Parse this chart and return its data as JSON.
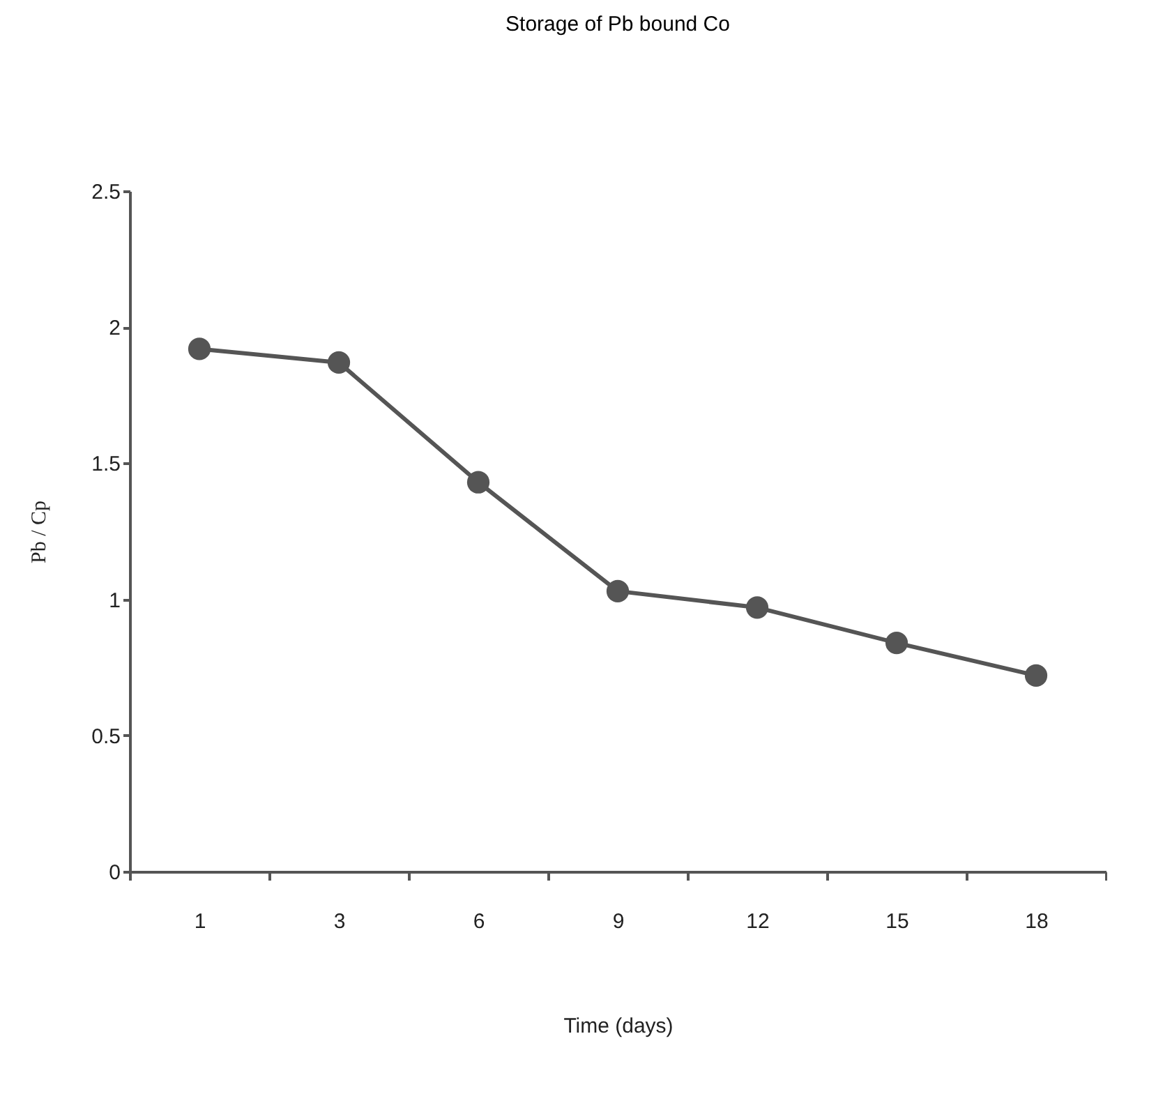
{
  "chart_data": {
    "type": "line",
    "title": "Storage of Pb bound Co",
    "xlabel": "Time (days)",
    "ylabel": "Pb / Cp",
    "categories": [
      "1",
      "3",
      "6",
      "9",
      "12",
      "15",
      "18"
    ],
    "series": [
      {
        "color": "#555555",
        "values": [
          1.92,
          1.87,
          1.43,
          1.03,
          0.97,
          0.84,
          0.72
        ]
      }
    ],
    "ylim": [
      0,
      2.5
    ],
    "yticks": [
      0,
      0.5,
      1,
      1.5,
      2,
      2.5
    ],
    "grid": false,
    "legend": false,
    "marker": "circle",
    "line_style": "solid"
  }
}
